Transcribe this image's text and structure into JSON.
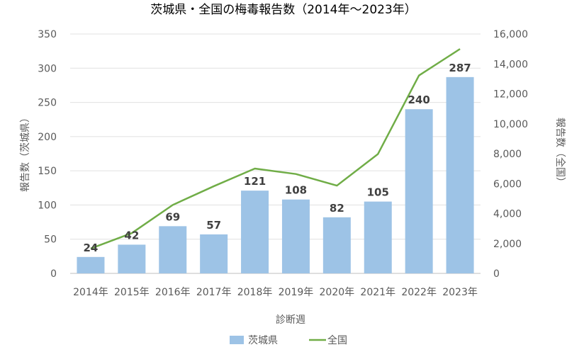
{
  "chart_data": {
    "type": "bar",
    "title": "茨城県・全国の梅毒報告数（2014年～2023年）",
    "xlabel": "診断週",
    "ylabel": "報告数（茨城県）",
    "y2label": "報告数（全国）",
    "categories": [
      "2014年",
      "2015年",
      "2016年",
      "2017年",
      "2018年",
      "2019年",
      "2020年",
      "2021年",
      "2022年",
      "2023年"
    ],
    "ylim": [
      0,
      350
    ],
    "y_ticks": [
      "0",
      "50",
      "100",
      "150",
      "200",
      "250",
      "300",
      "350"
    ],
    "y2lim": [
      0,
      16000
    ],
    "y2_ticks": [
      "0",
      "2,000",
      "4,000",
      "6,000",
      "8,000",
      "10,000",
      "12,000",
      "14,000",
      "16,000"
    ],
    "grid": true,
    "legend_position": "bottom",
    "series": [
      {
        "name": "茨城県",
        "type": "bar",
        "axis": "left",
        "color": "#9dc3e6",
        "values": [
          24,
          42,
          69,
          57,
          121,
          108,
          82,
          105,
          240,
          287
        ],
        "labels": [
          "24",
          "42",
          "69",
          "57",
          "121",
          "108",
          "82",
          "105",
          "240",
          "287"
        ]
      },
      {
        "name": "全国",
        "type": "line",
        "axis": "right",
        "color": "#70ad47",
        "values": [
          1661,
          2690,
          4575,
          5826,
          7007,
          6642,
          5867,
          7978,
          13228,
          15000
        ]
      }
    ]
  }
}
